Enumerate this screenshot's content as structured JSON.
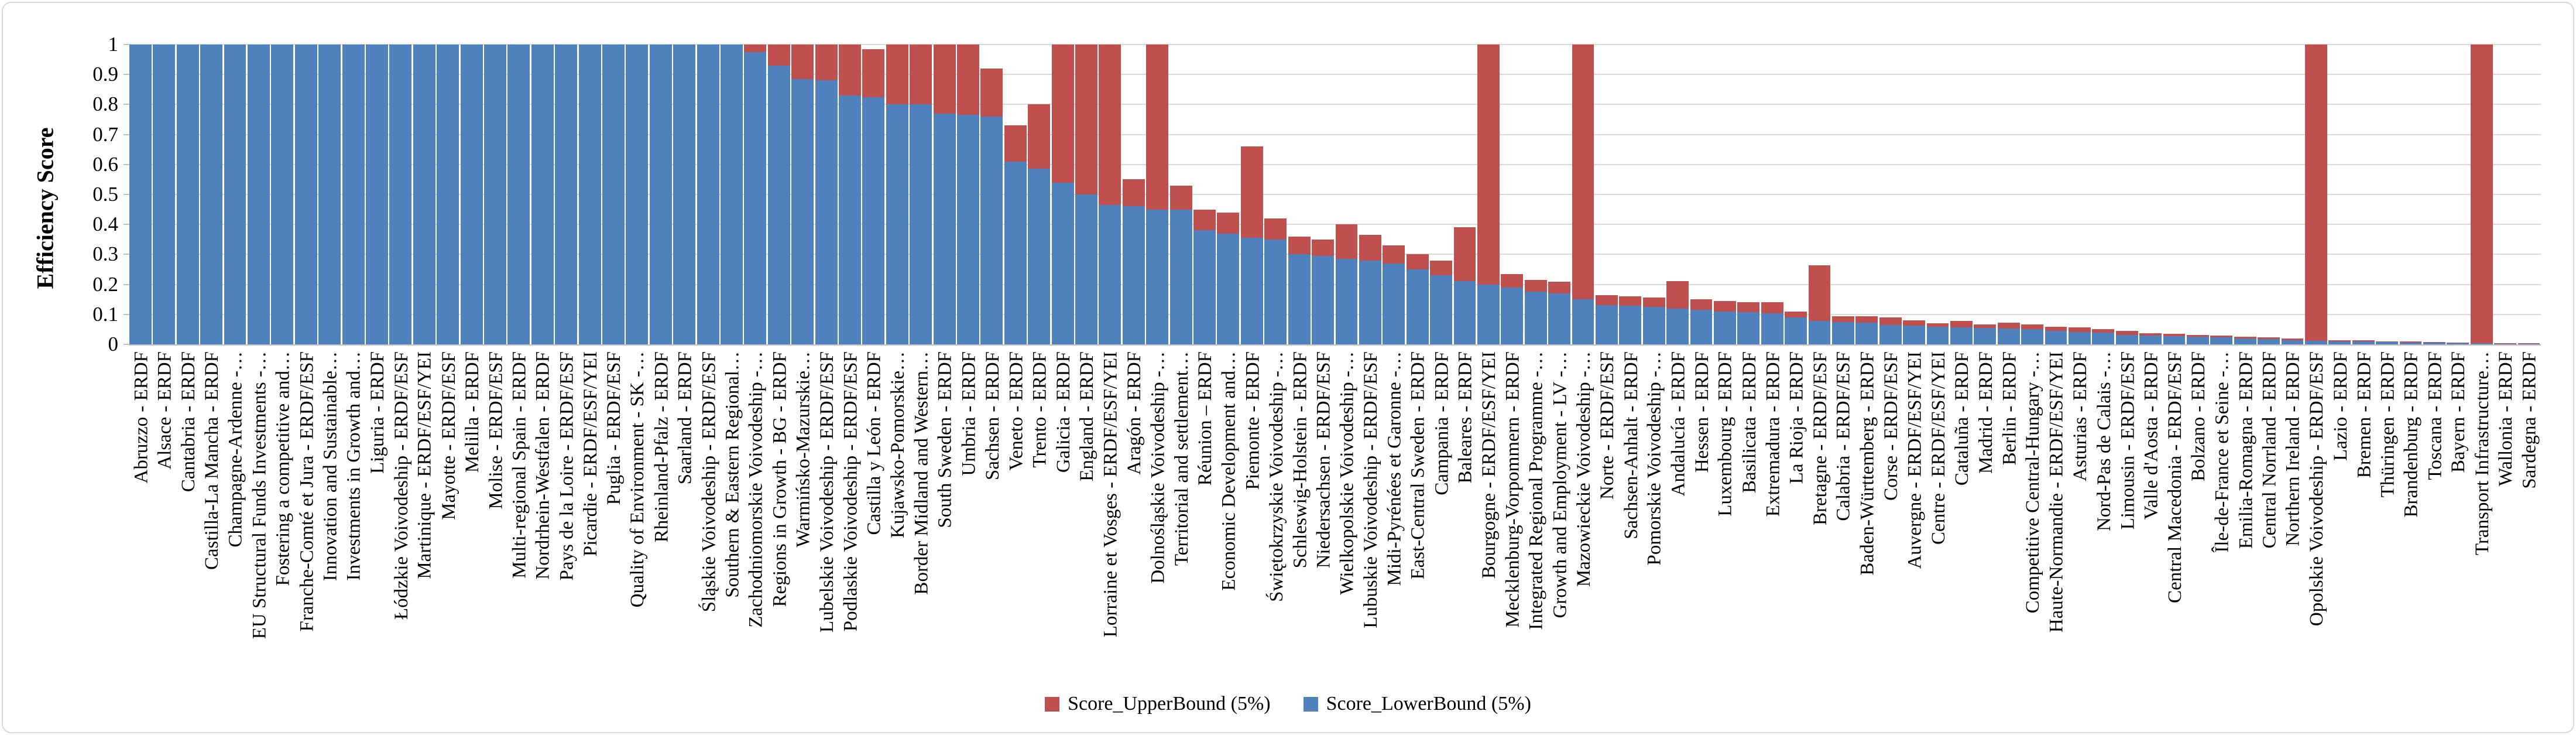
{
  "figure": {
    "background": "#FFFFFF",
    "border_color": "#D9D9D9"
  },
  "chart_data": {
    "type": "bar",
    "stacked": true,
    "title": "",
    "xlabel": "",
    "ylabel": "Efficiency Score",
    "ylim": [
      0,
      1
    ],
    "ytick_step": 0.1,
    "yticks": [
      "0",
      "0.1",
      "0.2",
      "0.3",
      "0.4",
      "0.5",
      "0.6",
      "0.7",
      "0.8",
      "0.9",
      "1"
    ],
    "grid": "horizontal",
    "legend_position": "bottom-center",
    "bar_colors": {
      "lower": "#4F81BD",
      "upper": "#C0504D"
    },
    "categories": [
      "Abruzzo - ERDF",
      "Alsace - ERDF",
      "Cantabria - ERDF",
      "Castilla-La Mancha - ERDF",
      "Champagne-Ardenne -…",
      "EU Structural Funds Investments -…",
      "Fostering a competitive and…",
      "Franche-Comté et Jura - ERDF/ESF",
      "Innovation and Sustainable…",
      "Investments in Growth and…",
      "Liguria - ERDF",
      "Łódzkie Voivodeship - ERDF/ESF",
      "Martinique - ERDF/ESF/YEI",
      "Mayotte - ERDF/ESF",
      "Melilla - ERDF",
      "Molise - ERDF/ESF",
      "Multi-regional Spain - ERDF",
      "Nordrhein-Westfalen - ERDF",
      "Pays de la Loire - ERDF/ESF",
      "Picardie - ERDF/ESF/YEI",
      "Puglia - ERDF/ESF",
      "Quality of Environment - SK -…",
      "Rheinland-Pfalz - ERDF",
      "Saarland - ERDF",
      "Śląskie Voivodeship - ERDF/ESF",
      "Southern & Eastern Regional…",
      "Zachodniomorskie Voivodeship -…",
      "Regions in Growth - BG - ERDF",
      "Warmińsko-Mazurskie…",
      "Lubelskie Voivodeship - ERDF/ESF",
      "Podlaskie Voivodeship - ERDF/ESF",
      "Castilla y León - ERDF",
      "Kujawsko-Pomorskie…",
      "Border Midland and Western…",
      "South Sweden - ERDF",
      "Umbria - ERDF",
      "Sachsen - ERDF",
      "Veneto - ERDF",
      "Trento - ERDF",
      "Galicia - ERDF",
      "England - ERDF",
      "Lorraine et Vosges - ERDF/ESF/YEI",
      "Aragón - ERDF",
      "Dolnośląskie Voivodeship -…",
      "Territorial and settlement…",
      "Réunion – ERDF",
      "Economic Development and…",
      "Piemonte - ERDF",
      "Świętokrzyskie Voivodeship -…",
      "Schleswig-Holstein - ERDF",
      "Niedersachsen - ERDF/ESF",
      "Wielkopolskie Voivodeship -…",
      "Lubuskie Voivodeship - ERDF/ESF",
      "Midi-Pyrénées et Garonne -…",
      "East-Central Sweden - ERDF",
      "Campania - ERDF",
      "Baleares - ERDF",
      "Bourgogne - ERDF/ESF/YEI",
      "Mecklenburg-Vorpommern - ERDF",
      "Integrated Regional Programme -…",
      "Growth and Employment - LV -…",
      "Mazowieckie Voivodeship -…",
      "Norte - ERDF/ESF",
      "Sachsen-Anhalt - ERDF",
      "Pomorskie Voivodeship -…",
      "Andalucía - ERDF",
      "Hessen - ERDF",
      "Luxembourg - ERDF",
      "Basilicata - ERDF",
      "Extremadura - ERDF",
      "La Rioja - ERDF",
      "Bretagne - ERDF/ESF",
      "Calabria - ERDF/ESF",
      "Baden-Württemberg - ERDF",
      "Corse - ERDF/ESF",
      "Auvergne - ERDF/ESF/YEI",
      "Centre - ERDF/ESF/YEI",
      "Cataluña - ERDF",
      "Madrid - ERDF",
      "Berlin - ERDF",
      "Competitive Central-Hungary -…",
      "Haute-Normandie - ERDF/ESF/YEI",
      "Asturias - ERDF",
      "Nord-Pas de Calais -…",
      "Limousin - ERDF/ESF",
      "Valle d'Aosta - ERDF",
      "Central Macedonia - ERDF/ESF",
      "Bolzano - ERDF",
      "Île-de-France et Seine -…",
      "Emilia-Romagna - ERDF",
      "Central Norrland - ERDF",
      "Northern Ireland - ERDF",
      "Opolskie Voivodeship - ERDF/ESF",
      "Lazio - ERDF",
      "Bremen - ERDF",
      "Thüringen - ERDF",
      "Brandenburg - ERDF",
      "Toscana - ERDF",
      "Bayern - ERDF",
      "Transport Infrastructure…",
      "Wallonia - ERDF",
      "Sardegna - ERDF"
    ],
    "series": [
      {
        "name": "Score_UpperBound (5%)",
        "color": "#C0504D",
        "role": "upper",
        "values": [
          1,
          1,
          1,
          1,
          1,
          1,
          1,
          1,
          1,
          1,
          1,
          1,
          1,
          1,
          1,
          1,
          1,
          1,
          1,
          1,
          1,
          1,
          1,
          1,
          1,
          1,
          1,
          1,
          1,
          1,
          1,
          0.985,
          1,
          1,
          1,
          1,
          0.92,
          0.73,
          0.8,
          1,
          1,
          1,
          0.55,
          1,
          0.53,
          0.45,
          0.44,
          0.66,
          0.42,
          0.36,
          0.35,
          0.4,
          0.365,
          0.33,
          0.3,
          0.28,
          0.39,
          1,
          0.235,
          0.215,
          0.21,
          1,
          0.165,
          0.16,
          0.157,
          0.21,
          0.15,
          0.145,
          0.14,
          0.14,
          0.11,
          0.263,
          0.094,
          0.093,
          0.09,
          0.08,
          0.07,
          0.078,
          0.066,
          0.072,
          0.066,
          0.058,
          0.056,
          0.05,
          0.044,
          0.038,
          0.035,
          0.032,
          0.03,
          0.026,
          0.023,
          0.02,
          1,
          0.014,
          0.013,
          0.01,
          0.009,
          0.007,
          0.006,
          1,
          0.004,
          0.003
        ]
      },
      {
        "name": "Score_LowerBound (5%)",
        "color": "#4F81BD",
        "role": "lower",
        "values": [
          1,
          1,
          1,
          1,
          1,
          1,
          1,
          1,
          1,
          1,
          1,
          1,
          1,
          1,
          1,
          1,
          1,
          1,
          1,
          1,
          1,
          1,
          1,
          1,
          1,
          1,
          0.975,
          0.93,
          0.885,
          0.88,
          0.83,
          0.825,
          0.8,
          0.8,
          0.77,
          0.765,
          0.76,
          0.61,
          0.585,
          0.54,
          0.5,
          0.465,
          0.46,
          0.45,
          0.45,
          0.38,
          0.37,
          0.355,
          0.35,
          0.3,
          0.295,
          0.285,
          0.28,
          0.27,
          0.25,
          0.23,
          0.21,
          0.2,
          0.19,
          0.175,
          0.17,
          0.15,
          0.13,
          0.128,
          0.125,
          0.12,
          0.115,
          0.11,
          0.107,
          0.104,
          0.09,
          0.078,
          0.074,
          0.073,
          0.065,
          0.062,
          0.058,
          0.056,
          0.054,
          0.052,
          0.05,
          0.045,
          0.042,
          0.04,
          0.032,
          0.029,
          0.027,
          0.025,
          0.023,
          0.02,
          0.017,
          0.014,
          0.012,
          0.01,
          0.009,
          0.007,
          0.006,
          0.005,
          0.004,
          0.003,
          0.002,
          0.002
        ]
      }
    ]
  }
}
